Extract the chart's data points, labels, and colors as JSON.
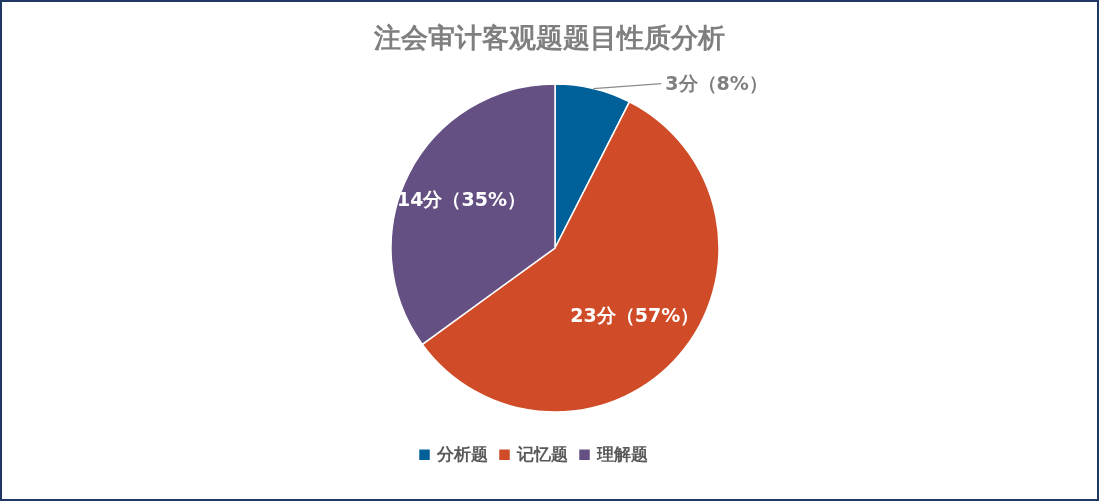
{
  "chart_data": {
    "type": "pie",
    "title": "注会审计客观题题目性质分析",
    "categories": [
      "分析题",
      "记忆题",
      "理解题"
    ],
    "values": [
      3,
      23,
      14
    ],
    "colors": [
      "#00609a",
      "#d04b27",
      "#655083"
    ],
    "value_labels": [
      "3分（8%）",
      "23分（57%）",
      "14分（35%）"
    ],
    "legend": "bottom"
  }
}
